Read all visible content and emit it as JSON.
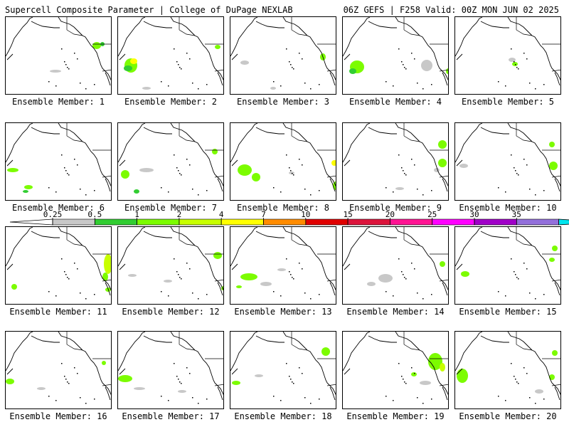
{
  "header": {
    "title": "Supercell Composite Parameter | College of DuPage NEXLAB",
    "run_info": "06Z GEFS | F258 Valid: 00Z MON JUN 02 2025"
  },
  "legend": {
    "ticks": [
      "0.25",
      "0.5",
      "1",
      "2",
      "4",
      "7",
      "10",
      "15",
      "20",
      "25",
      "30",
      "35"
    ],
    "colors": [
      "#c8c8c8",
      "#32cd32",
      "#7cfc00",
      "#c8ff00",
      "#ffff00",
      "#ff8c00",
      "#e00000",
      "#dc143c",
      "#ff1493",
      "#ff00ff",
      "#a000c8",
      "#9370db",
      "#00e5ee"
    ]
  },
  "members": [
    {
      "label": "Ensemble Member: 1"
    },
    {
      "label": "Ensemble Member: 2"
    },
    {
      "label": "Ensemble Member: 3"
    },
    {
      "label": "Ensemble Member: 4"
    },
    {
      "label": "Ensemble Member: 5"
    },
    {
      "label": "Ensemble Member: 6"
    },
    {
      "label": "Ensemble Member: 7"
    },
    {
      "label": "Ensemble Member: 8"
    },
    {
      "label": "Ensemble Member: 9"
    },
    {
      "label": "Ensemble Member: 10"
    },
    {
      "label": "Ensemble Member: 11"
    },
    {
      "label": "Ensemble Member: 12"
    },
    {
      "label": "Ensemble Member: 13"
    },
    {
      "label": "Ensemble Member: 14"
    },
    {
      "label": "Ensemble Member: 15"
    },
    {
      "label": "Ensemble Member: 16"
    },
    {
      "label": "Ensemble Member: 17"
    },
    {
      "label": "Ensemble Member: 18"
    },
    {
      "label": "Ensemble Member: 19"
    },
    {
      "label": "Ensemble Member: 20"
    }
  ]
}
